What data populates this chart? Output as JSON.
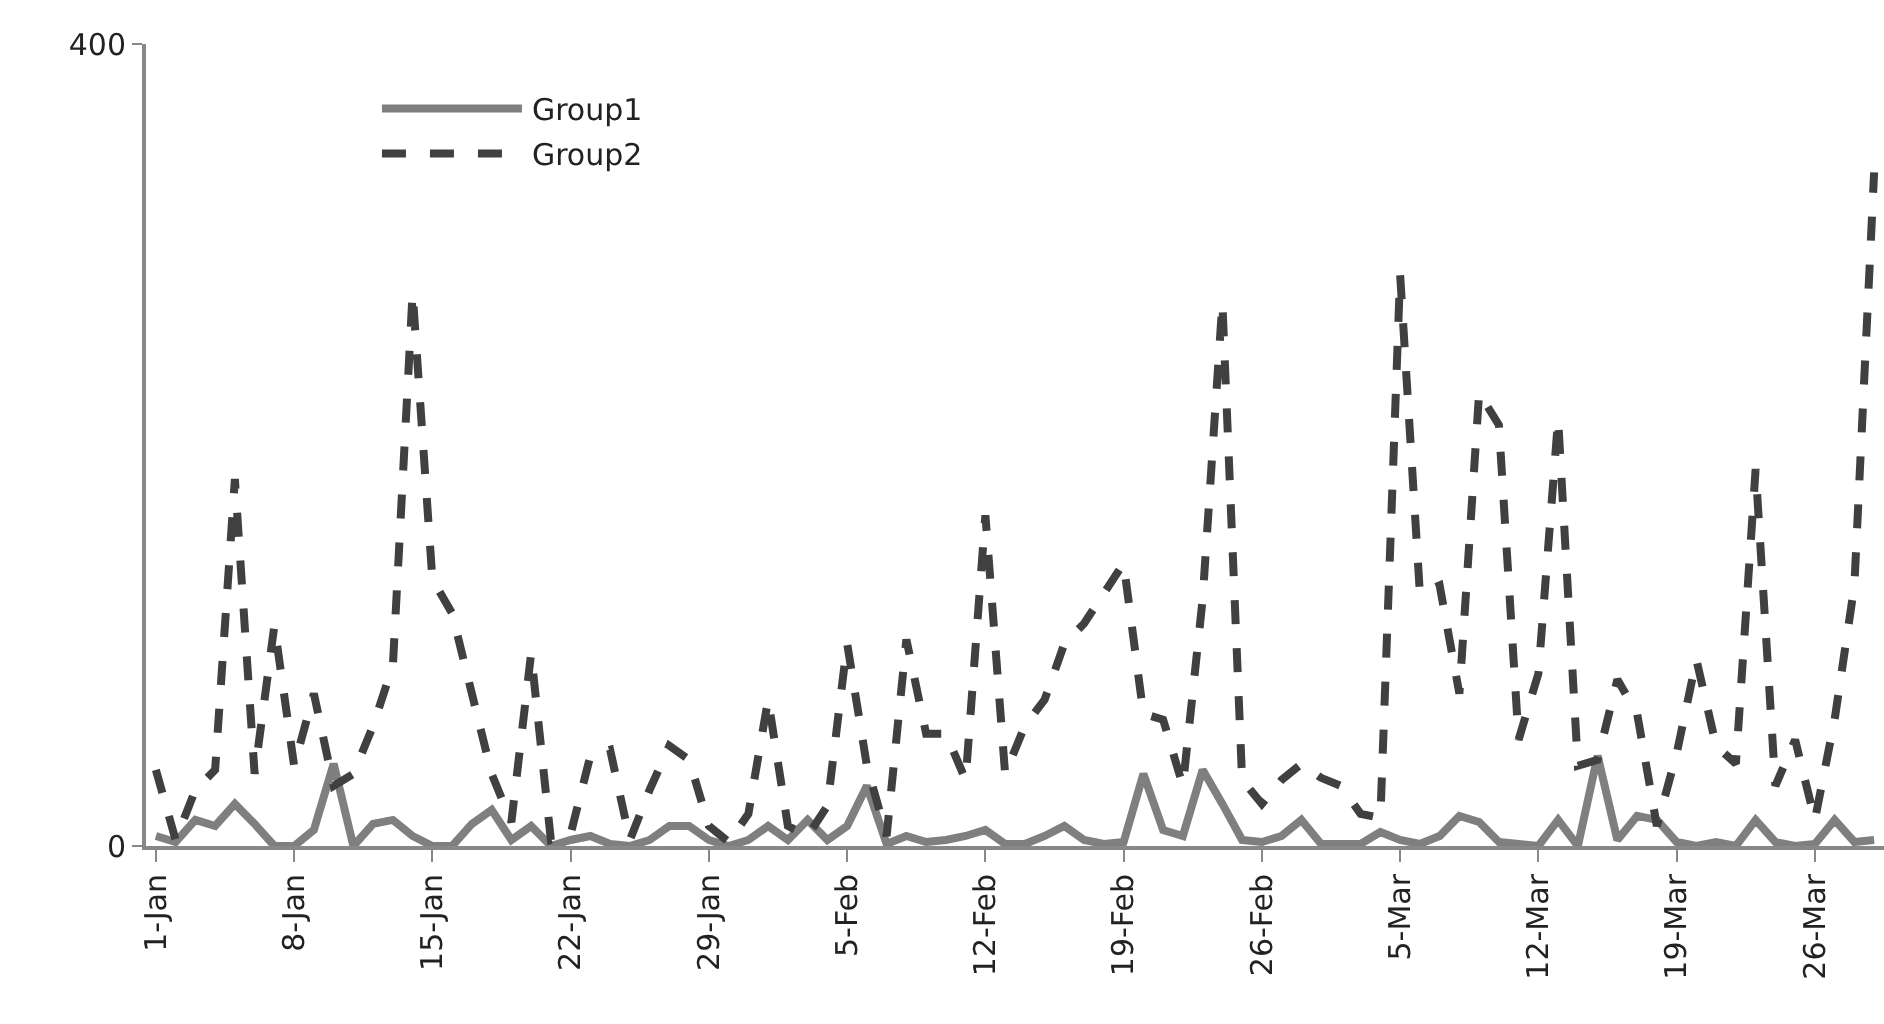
{
  "chart_data": {
    "type": "line",
    "categories": [
      "1-Jan",
      null,
      null,
      null,
      null,
      null,
      null,
      "8-Jan",
      null,
      null,
      null,
      null,
      null,
      null,
      "15-Jan",
      null,
      null,
      null,
      null,
      null,
      null,
      "22-Jan",
      null,
      null,
      null,
      null,
      null,
      null,
      "29-Jan",
      null,
      null,
      null,
      null,
      null,
      null,
      "5-Feb",
      null,
      null,
      null,
      null,
      null,
      null,
      "12-Feb",
      null,
      null,
      null,
      null,
      null,
      null,
      "19-Feb",
      null,
      null,
      null,
      null,
      null,
      null,
      "26-Feb",
      null,
      null,
      null,
      null,
      null,
      null,
      "5-Mar",
      null,
      null,
      null,
      null,
      null,
      null,
      "12-Mar",
      null,
      null,
      null,
      null,
      null,
      null,
      "19-Mar",
      null,
      null,
      null,
      null,
      null,
      null,
      "26-Mar",
      null,
      null,
      null
    ],
    "series": [
      {
        "name": "Group1",
        "color": "#7f7f7f",
        "line_style": "solid",
        "values": [
          5,
          2,
          13,
          10,
          21,
          11,
          0,
          0,
          8,
          41,
          0,
          11,
          13,
          5,
          0,
          0,
          11,
          18,
          3,
          10,
          0,
          3,
          5,
          1,
          0,
          3,
          10,
          10,
          3,
          0,
          3,
          10,
          3,
          13,
          3,
          10,
          30,
          1,
          5,
          2,
          3,
          5,
          8,
          1,
          1,
          5,
          10,
          3,
          1,
          2,
          36,
          8,
          5,
          38,
          21,
          3,
          2,
          5,
          13,
          1,
          1,
          1,
          7,
          3,
          1,
          5,
          15,
          12,
          2,
          1,
          0,
          13,
          0,
          45,
          3,
          15,
          13,
          2,
          0,
          2,
          0,
          13,
          2,
          0,
          1,
          13,
          2,
          3
        ]
      },
      {
        "name": "Group2",
        "color": "#404040",
        "line_style": "dashed",
        "values": [
          38,
          3,
          28,
          38,
          183,
          36,
          110,
          40,
          76,
          30,
          36,
          60,
          90,
          276,
          133,
          116,
          76,
          36,
          12,
          96,
          3,
          6,
          45,
          48,
          3,
          28,
          50,
          43,
          10,
          2,
          16,
          73,
          10,
          5,
          20,
          101,
          40,
          5,
          103,
          56,
          56,
          33,
          165,
          36,
          60,
          73,
          101,
          111,
          126,
          141,
          66,
          63,
          30,
          123,
          271,
          33,
          21,
          33,
          41,
          34,
          30,
          16,
          14,
          285,
          126,
          130,
          76,
          226,
          210,
          53,
          86,
          213,
          40,
          43,
          83,
          66,
          10,
          46,
          93,
          50,
          41,
          188,
          30,
          53,
          13,
          63,
          130,
          336
        ]
      }
    ],
    "ylim": [
      0,
      400
    ],
    "yticks": [
      0,
      400
    ],
    "legend": "top left"
  }
}
